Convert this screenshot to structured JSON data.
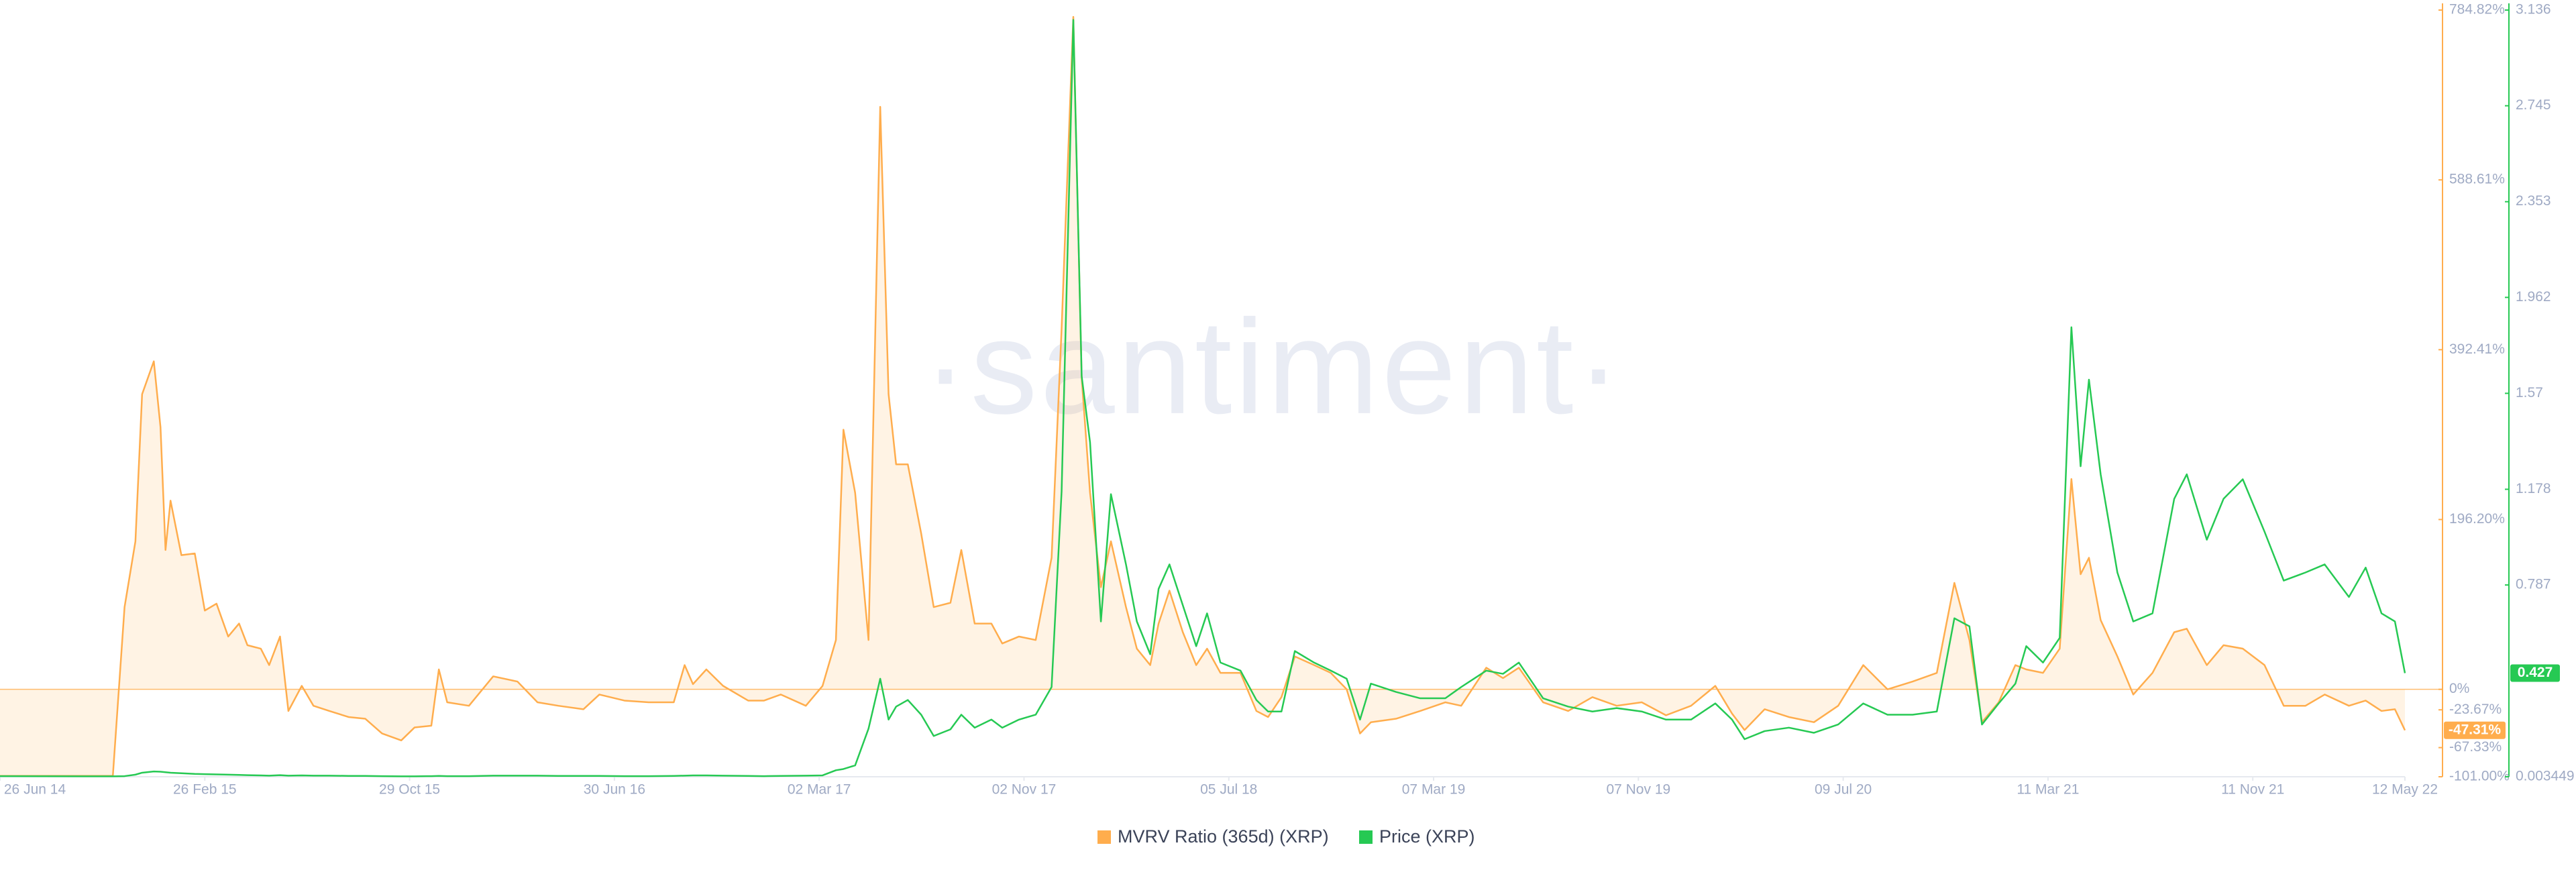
{
  "chart_data": {
    "type": "line",
    "watermark": "·santiment·",
    "x": [
      "2014-06-26",
      "2014-11-08",
      "2014-11-22",
      "2014-12-05",
      "2014-12-13",
      "2014-12-27",
      "2015-01-04",
      "2015-01-10",
      "2015-01-16",
      "2015-01-29",
      "2015-02-14",
      "2015-02-26",
      "2015-03-12",
      "2015-03-26",
      "2015-04-08",
      "2015-04-18",
      "2015-05-04",
      "2015-05-14",
      "2015-05-27",
      "2015-06-06",
      "2015-06-22",
      "2015-07-06",
      "2015-07-25",
      "2015-08-17",
      "2015-09-06",
      "2015-09-26",
      "2015-10-19",
      "2015-11-04",
      "2015-11-24",
      "2015-12-03",
      "2015-12-13",
      "2016-01-08",
      "2016-02-06",
      "2016-03-06",
      "2016-03-30",
      "2016-04-24",
      "2016-05-24",
      "2016-06-12",
      "2016-07-12",
      "2016-08-10",
      "2016-09-09",
      "2016-09-22",
      "2016-10-02",
      "2016-10-18",
      "2016-11-07",
      "2016-12-07",
      "2016-12-26",
      "2017-01-15",
      "2017-02-14",
      "2017-03-06",
      "2017-03-22",
      "2017-03-31",
      "2017-04-14",
      "2017-04-30",
      "2017-05-14",
      "2017-05-24",
      "2017-06-02",
      "2017-06-16",
      "2017-07-02",
      "2017-07-17",
      "2017-08-06",
      "2017-08-19",
      "2017-09-04",
      "2017-09-24",
      "2017-10-07",
      "2017-10-27",
      "2017-11-16",
      "2017-12-05",
      "2017-12-17",
      "2017-12-31",
      "2018-01-10",
      "2018-01-20",
      "2018-02-02",
      "2018-02-14",
      "2018-03-04",
      "2018-03-17",
      "2018-04-02",
      "2018-04-12",
      "2018-04-25",
      "2018-05-11",
      "2018-05-27",
      "2018-06-09",
      "2018-06-25",
      "2018-07-19",
      "2018-08-07",
      "2018-08-21",
      "2018-09-06",
      "2018-09-22",
      "2018-10-15",
      "2018-11-04",
      "2018-11-23",
      "2018-12-09",
      "2018-12-22",
      "2019-01-21",
      "2019-02-19",
      "2019-03-21",
      "2019-04-09",
      "2019-05-09",
      "2019-05-29",
      "2019-06-17",
      "2019-07-16",
      "2019-08-15",
      "2019-09-13",
      "2019-10-12",
      "2019-11-11",
      "2019-12-10",
      "2020-01-09",
      "2020-02-07",
      "2020-02-27",
      "2020-03-13",
      "2020-04-06",
      "2020-05-05",
      "2020-06-04",
      "2020-07-03",
      "2020-08-02",
      "2020-08-31",
      "2020-09-30",
      "2020-10-29",
      "2020-11-19",
      "2020-12-07",
      "2020-12-22",
      "2021-01-11",
      "2021-01-31",
      "2021-02-13",
      "2021-03-05",
      "2021-03-25",
      "2021-04-08",
      "2021-04-19",
      "2021-04-29",
      "2021-05-13",
      "2021-06-02",
      "2021-06-21",
      "2021-07-14",
      "2021-08-09",
      "2021-08-24",
      "2021-09-17",
      "2021-10-07",
      "2021-10-30",
      "2021-11-25",
      "2021-12-18",
      "2022-01-13",
      "2022-02-05",
      "2022-03-06",
      "2022-03-26",
      "2022-04-14",
      "2022-04-30",
      "2022-05-12"
    ],
    "xlim": [
      "2014-06-26",
      "2022-05-12"
    ],
    "xticks": [
      {
        "value": "2014-06-26",
        "label": "26 Jun 14"
      },
      {
        "value": "2015-02-26",
        "label": "26 Feb 15"
      },
      {
        "value": "2015-10-29",
        "label": "29 Oct 15"
      },
      {
        "value": "2016-06-30",
        "label": "30 Jun 16"
      },
      {
        "value": "2017-03-02",
        "label": "02 Mar 17"
      },
      {
        "value": "2017-11-02",
        "label": "02 Nov 17"
      },
      {
        "value": "2018-07-05",
        "label": "05 Jul 18"
      },
      {
        "value": "2019-03-07",
        "label": "07 Mar 19"
      },
      {
        "value": "2019-11-07",
        "label": "07 Nov 19"
      },
      {
        "value": "2020-07-09",
        "label": "09 Jul 20"
      },
      {
        "value": "2021-03-11",
        "label": "11 Mar 21"
      },
      {
        "value": "2021-11-11",
        "label": "11 Nov 21"
      },
      {
        "value": "2022-05-12",
        "label": "12 May 22"
      }
    ],
    "ylim": [
      -101,
      784.82
    ],
    "yticks": [
      {
        "value": 784.82,
        "label": "784.82%"
      },
      {
        "value": 588.61,
        "label": "588.61%"
      },
      {
        "value": 392.41,
        "label": "392.41%"
      },
      {
        "value": 196.2,
        "label": "196.20%"
      },
      {
        "value": 0,
        "label": "0%"
      },
      {
        "value": -23.67,
        "label": "-23.67%"
      },
      {
        "value": -67.33,
        "label": "-67.33%"
      },
      {
        "value": -101,
        "label": "-101.00%"
      }
    ],
    "y2lim": [
      0.003449,
      3.136
    ],
    "y2ticks": [
      3.136,
      2.745,
      2.353,
      1.962,
      1.57,
      1.178,
      0.787,
      0.003449
    ],
    "series": [
      {
        "name": "MVRV Ratio (365d) (XRP)",
        "color": "#ffad4d",
        "area": true,
        "last_value_label": "-47.31%",
        "values": [
          -100,
          -100,
          95,
          171,
          341,
          379,
          303,
          161,
          218,
          155,
          157,
          91,
          99,
          61,
          76,
          51,
          47,
          28,
          61,
          -25,
          4,
          -19,
          -25,
          -32,
          -34,
          -51,
          -59,
          -44,
          -42,
          23,
          -15,
          -19,
          15,
          9,
          -15,
          -19,
          -23,
          -6,
          -13,
          -15,
          -15,
          28,
          6,
          23,
          4,
          -13,
          -13,
          -6,
          -19,
          4,
          57,
          300,
          227,
          57,
          673,
          341,
          260,
          260,
          180,
          95,
          100,
          161,
          76,
          76,
          53,
          61,
          57,
          152,
          417,
          777,
          360,
          227,
          118,
          171,
          95,
          47,
          28,
          76,
          114,
          66,
          28,
          47,
          19,
          19,
          -25,
          -32,
          -9,
          38,
          28,
          19,
          0,
          -51,
          -38,
          -34,
          -25,
          -15,
          -19,
          25,
          13,
          25,
          -15,
          -25,
          -9,
          -19,
          -15,
          -30,
          -19,
          4,
          -28,
          -47,
          -23,
          -32,
          -38,
          -19,
          28,
          0,
          9,
          19,
          123,
          57,
          -38,
          -15,
          28,
          23,
          19,
          47,
          243,
          133,
          152,
          80,
          38,
          -6,
          19,
          66,
          70,
          28,
          51,
          47,
          28,
          -19,
          -19,
          -6,
          -19,
          -13,
          -25,
          -23,
          -47.31
        ]
      },
      {
        "name": "Price (XRP)",
        "color": "#26c953",
        "axis": "y2",
        "values": [
          0.006,
          0.005,
          0.006,
          0.012,
          0.02,
          0.025,
          0.024,
          0.022,
          0.02,
          0.018,
          0.015,
          0.014,
          0.013,
          0.012,
          0.011,
          0.01,
          0.009,
          0.008,
          0.01,
          0.008,
          0.009,
          0.008,
          0.008,
          0.007,
          0.007,
          0.006,
          0.005,
          0.005,
          0.006,
          0.007,
          0.006,
          0.006,
          0.008,
          0.008,
          0.008,
          0.007,
          0.007,
          0.007,
          0.006,
          0.006,
          0.007,
          0.008,
          0.009,
          0.009,
          0.008,
          0.007,
          0.006,
          0.007,
          0.008,
          0.009,
          0.03,
          0.035,
          0.05,
          0.2,
          0.404,
          0.237,
          0.29,
          0.317,
          0.257,
          0.17,
          0.197,
          0.257,
          0.204,
          0.237,
          0.204,
          0.237,
          0.257,
          0.37,
          1.17,
          3.096,
          1.64,
          1.37,
          0.638,
          1.158,
          0.871,
          0.638,
          0.504,
          0.771,
          0.871,
          0.704,
          0.537,
          0.671,
          0.47,
          0.437,
          0.317,
          0.27,
          0.27,
          0.517,
          0.47,
          0.437,
          0.404,
          0.237,
          0.384,
          0.35,
          0.324,
          0.324,
          0.37,
          0.437,
          0.424,
          0.47,
          0.324,
          0.29,
          0.27,
          0.284,
          0.27,
          0.237,
          0.237,
          0.303,
          0.237,
          0.157,
          0.19,
          0.204,
          0.183,
          0.217,
          0.303,
          0.257,
          0.257,
          0.27,
          0.651,
          0.618,
          0.217,
          0.303,
          0.384,
          0.537,
          0.47,
          0.571,
          1.84,
          1.272,
          1.626,
          1.239,
          0.838,
          0.638,
          0.671,
          1.139,
          1.239,
          0.972,
          1.139,
          1.219,
          1.005,
          0.805,
          0.838,
          0.871,
          0.738,
          0.858,
          0.671,
          0.638,
          0.427
        ]
      }
    ]
  }
}
